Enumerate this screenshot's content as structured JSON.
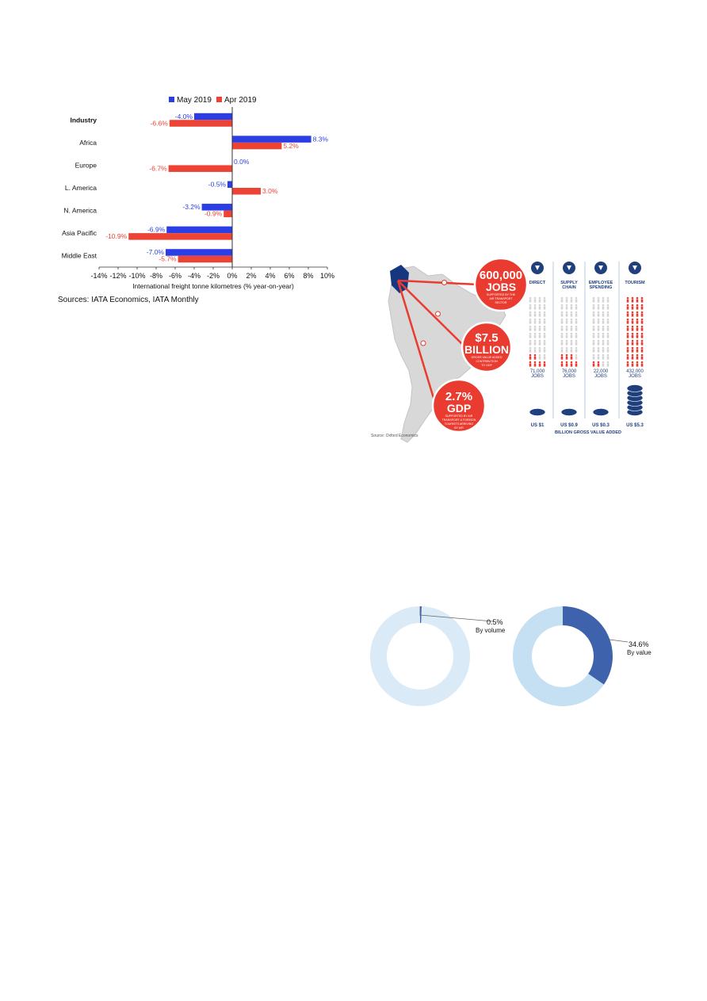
{
  "chart_data": [
    {
      "type": "bar",
      "orientation": "horizontal",
      "categories": [
        "Industry",
        "Africa",
        "Europe",
        "L. America",
        "N. America",
        "Asia Pacific",
        "Middle East"
      ],
      "series": [
        {
          "name": "May 2019",
          "color": "#2b3ee6",
          "values": [
            -4.0,
            8.3,
            0.0,
            -0.5,
            -3.2,
            -6.9,
            -7.0
          ],
          "labels": [
            "-4.0%",
            "8.3%",
            "0.0%",
            "-0.5%",
            "-3.2%",
            "-6.9%",
            "-7.0%"
          ]
        },
        {
          "name": "Apr 2019",
          "color": "#ec4334",
          "values": [
            -6.6,
            5.2,
            -6.7,
            3.0,
            -0.9,
            -10.9,
            -5.7
          ],
          "labels": [
            "-6.6%",
            "5.2%",
            "-6.7%",
            "3.0%",
            "-0.9%",
            "-10.9%",
            "-5.7%"
          ]
        }
      ],
      "xlim": [
        -14,
        10
      ],
      "xticks": [
        "-14%",
        "-12%",
        "-10%",
        "-8%",
        "-6%",
        "-4%",
        "-2%",
        "0%",
        "2%",
        "4%",
        "6%",
        "8%",
        "10%"
      ],
      "xlabel": "International freight tonne kilometres (% year-on-year)",
      "legend_position": "top",
      "grid": false
    },
    {
      "type": "pie",
      "variant": "donut",
      "values": [
        0.5,
        99.5
      ],
      "label_value": "0.5%",
      "label_text": "By volume",
      "colors": [
        "#3f62ad",
        "#daeaf7"
      ]
    },
    {
      "type": "pie",
      "variant": "donut",
      "values": [
        34.6,
        65.4
      ],
      "label_value": "34.6%",
      "label_text": "By value",
      "colors": [
        "#3f62ad",
        "#c5dff3"
      ]
    }
  ],
  "sources": "Sources: IATA Economics, IATA Monthly",
  "infographic": {
    "circles": [
      {
        "big": "600,000",
        "unit": "JOBS",
        "small": [
          "SUPPORTED BY THE",
          "AIR TRANSPORT",
          "SECTOR"
        ]
      },
      {
        "big": "$7.5",
        "unit": "BILLION",
        "small": [
          "GROSS VALUE ADDED",
          "CONTRIBUTION",
          "TO GDP"
        ]
      },
      {
        "big": "2.7%",
        "unit": "GDP",
        "small": [
          "SUPPORTED BY AIR",
          "TRANSPORT & FOREIGN",
          "TOURISTS ARRIVING",
          "BY AIR"
        ]
      }
    ],
    "columns": [
      {
        "label": [
          "DIRECT"
        ],
        "icon": "arrow-down-icon",
        "jobs": [
          "71,000",
          "JOBS"
        ],
        "gva": "US $1",
        "fill": 0.16
      },
      {
        "label": [
          "SUPPLY",
          "CHAIN"
        ],
        "icon": "link-icon",
        "jobs": [
          "76,000",
          "JOBS"
        ],
        "gva": "US $0.9",
        "fill": 0.17
      },
      {
        "label": [
          "EMPLOYEE",
          "SPENDING"
        ],
        "icon": "wallet-icon",
        "jobs": [
          "22,000",
          "JOBS"
        ],
        "gva": "US $0.3",
        "fill": 0.05
      },
      {
        "label": [
          "TOURISM"
        ],
        "icon": "suitcase-icon",
        "jobs": [
          "432,000",
          "JOBS"
        ],
        "gva": "US $5.3",
        "fill": 1.0
      }
    ],
    "footer": "BILLION GROSS VALUE ADDED",
    "source": "Source: Oxford Economics"
  }
}
